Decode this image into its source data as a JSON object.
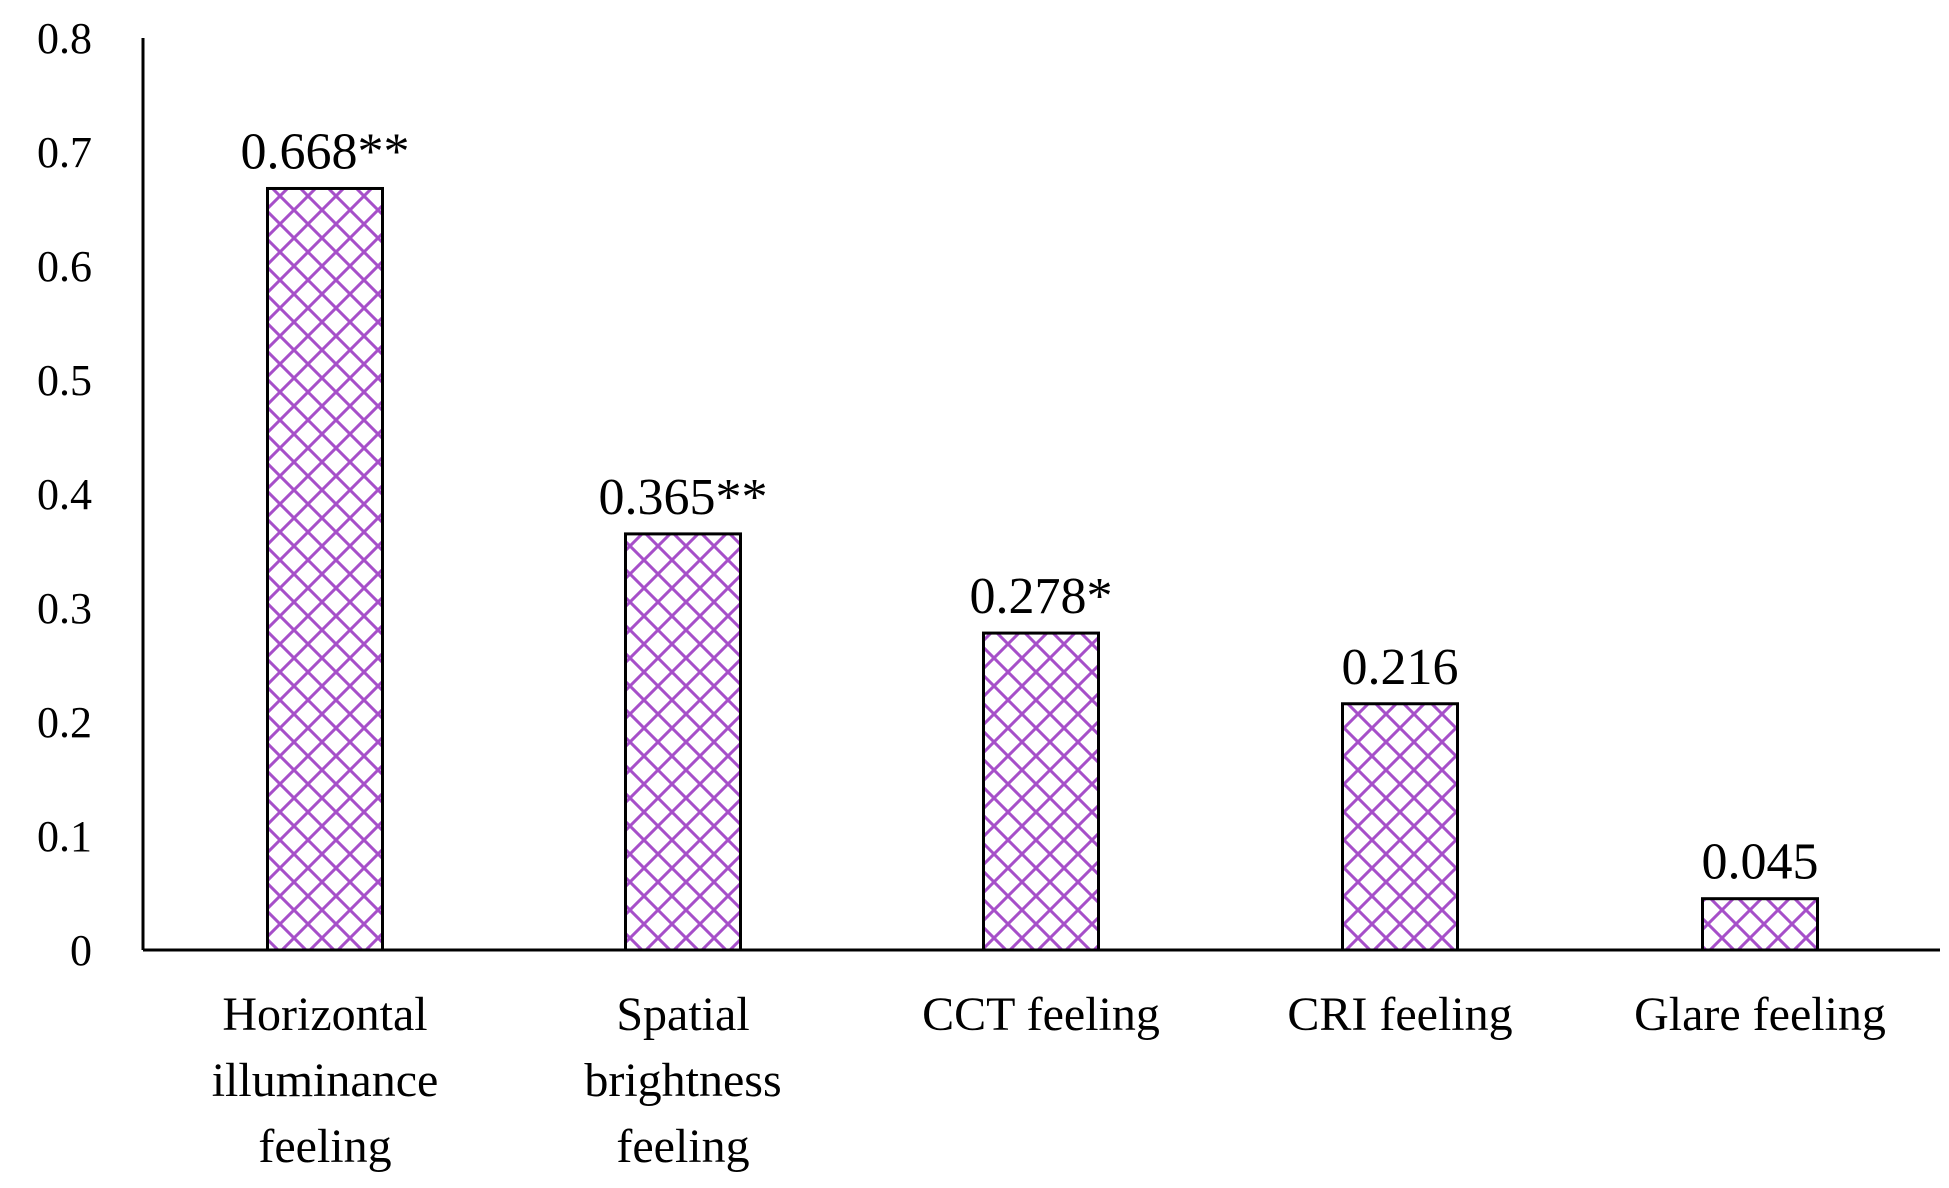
{
  "chart_data": {
    "type": "bar",
    "title": "",
    "xlabel": "",
    "ylabel": "",
    "ylim": [
      0,
      0.8
    ],
    "yticks": [
      "0",
      "0.1",
      "0.2",
      "0.3",
      "0.4",
      "0.5",
      "0.6",
      "0.7",
      "0.8"
    ],
    "ytick_values": [
      0,
      0.1,
      0.2,
      0.3,
      0.4,
      0.5,
      0.6,
      0.7,
      0.8
    ],
    "categories": [
      [
        "Horizontal",
        "illuminance",
        "feeling"
      ],
      [
        "Spatial",
        "brightness",
        "feeling"
      ],
      [
        "CCT feeling"
      ],
      [
        "CRI feeling"
      ],
      [
        "Glare feeling"
      ]
    ],
    "values": [
      0.668,
      0.365,
      0.278,
      0.216,
      0.045
    ],
    "data_labels": [
      "0.668**",
      "0.365**",
      "0.278*",
      "0.216",
      "0.045"
    ],
    "grid": false,
    "legend": "none",
    "bar_pattern": "crosshatch",
    "colors": {
      "hatch": "#a64fc9",
      "edge": "#000000",
      "axis": "#000000",
      "background": "#ffffff"
    }
  }
}
